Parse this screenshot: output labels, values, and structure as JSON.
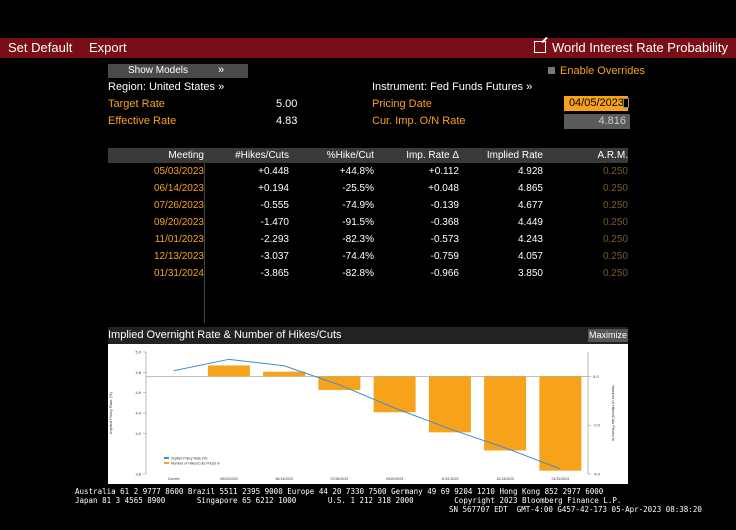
{
  "toolbar": {
    "set_default": "Set Default",
    "export": "Export",
    "title": "World Interest Rate Probability"
  },
  "controls": {
    "show_models": "Show Models",
    "enable_overrides": "Enable Overrides",
    "region": "Region: United States »",
    "instrument": "Instrument: Fed Funds Futures »",
    "target_rate_label": "Target Rate",
    "target_rate": "5.00",
    "effective_rate_label": "Effective Rate",
    "effective_rate": "4.83",
    "pricing_date_label": "Pricing Date",
    "pricing_date": "04/05/2023",
    "cur_imp_label": "Cur. Imp. O/N Rate",
    "cur_imp": "4.816"
  },
  "table": {
    "headers": [
      "Meeting",
      "#Hikes/Cuts",
      "%Hike/Cut",
      "Imp. Rate Δ",
      "Implied Rate",
      "A.R.M."
    ],
    "rows": [
      [
        "05/03/2023",
        "+0.448",
        "+44.8%",
        "+0.112",
        "4.928",
        "0.250"
      ],
      [
        "06/14/2023",
        "+0.194",
        "-25.5%",
        "+0.048",
        "4.865",
        "0.250"
      ],
      [
        "07/26/2023",
        "-0.555",
        "-74.9%",
        "-0.139",
        "4.677",
        "0.250"
      ],
      [
        "09/20/2023",
        "-1.470",
        "-91.5%",
        "-0.368",
        "4.449",
        "0.250"
      ],
      [
        "11/01/2023",
        "-2.293",
        "-82.3%",
        "-0.573",
        "4.243",
        "0.250"
      ],
      [
        "12/13/2023",
        "-3.037",
        "-74.4%",
        "-0.759",
        "4.057",
        "0.250"
      ],
      [
        "01/31/2024",
        "-3.865",
        "-82.8%",
        "-0.966",
        "3.850",
        "0.250"
      ]
    ]
  },
  "chart": {
    "title": "Implied Overnight Rate & Number of Hikes/Cuts",
    "maximize": "Maximize"
  },
  "chart_data": {
    "type": "bar",
    "title": "Implied Overnight Rate & Number of Hikes/Cuts",
    "categories": [
      "Current",
      "05/03/2023",
      "06/14/2023",
      "07/26/2023",
      "09/20/2023",
      "11/01/2023",
      "12/13/2023",
      "01/31/2024"
    ],
    "series": [
      {
        "name": "Implied Policy Rate (%)",
        "type": "line",
        "axis": "left",
        "color": "#3a8fd8",
        "values": [
          4.816,
          4.928,
          4.865,
          4.677,
          4.449,
          4.243,
          4.057,
          3.85
        ]
      },
      {
        "name": "Number of Hikes/Cuts Priced In",
        "type": "bar",
        "axis": "right",
        "color": "#f7a21b",
        "values": [
          null,
          0.448,
          0.194,
          -0.555,
          -1.47,
          -2.293,
          -3.037,
          -3.865
        ]
      }
    ],
    "ylim_left": [
      3.8,
      5.0
    ],
    "yticks_left": [
      3.8,
      4.2,
      4.4,
      4.6,
      4.8,
      5.0
    ],
    "ylim_right": [
      -4.0,
      1.0
    ],
    "yticks_right": [
      -4.0,
      -2.0,
      0.0
    ],
    "ylabel_left": "Implied Policy Rate (%)",
    "ylabel_right": "Number of Hikes/Cuts Priced In",
    "legend_position": "bottom-left"
  },
  "footer": {
    "line1": "Australia 61 2 9777 8600 Brazil 5511 2395 9000 Europe 44 20 7330 7500 Germany 49 69 9204 1210 Hong Kong 852 2977 6000",
    "line2": "Japan 81 3 4565 8900       Singapore 65 6212 1000       U.S. 1 212 318 2000         Copyright 2023 Bloomberg Finance L.P.",
    "line3": "SN 567707 EDT  GMT-4:00 G457-42-173 05-Apr-2023 08:38:20"
  }
}
